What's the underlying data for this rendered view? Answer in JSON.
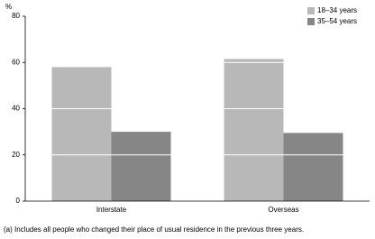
{
  "chart_data": {
    "type": "bar",
    "y_label": "%",
    "categories": [
      "Interstate",
      "Overseas"
    ],
    "series": [
      {
        "name": "18–34 years",
        "color": "#b8b8b8",
        "values": [
          58,
          61.5
        ]
      },
      {
        "name": "35–54 years",
        "color": "#868686",
        "values": [
          30,
          29.5
        ]
      }
    ],
    "ylim": [
      0,
      80
    ],
    "yticks": [
      0,
      20,
      40,
      60,
      80
    ],
    "grid": true,
    "legend": "top-right",
    "footnote": "(a) Includes all people who changed their place of usual residence in the previous three years."
  }
}
